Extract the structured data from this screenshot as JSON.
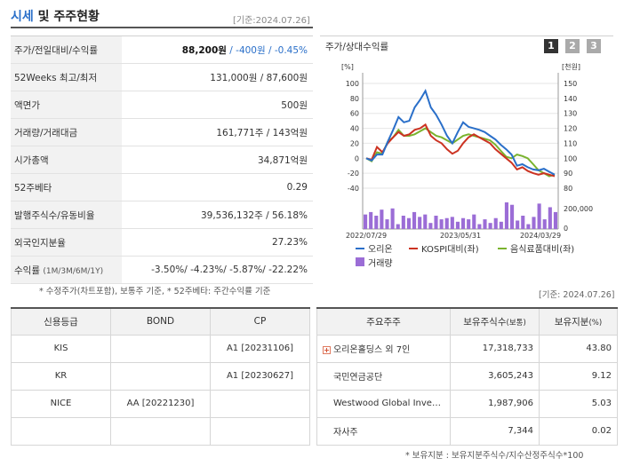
{
  "header": {
    "title_hl": "시세",
    "title_rest": " 및 주주현황",
    "date": "[기준:2024.07.26]"
  },
  "quote": {
    "rows": [
      {
        "label": "주가/전일대비/수익률"
      },
      {
        "label": "52Weeks 최고/최저",
        "value": "131,000원 / 87,600원"
      },
      {
        "label": "액면가",
        "value": "500원"
      },
      {
        "label": "거래량/거래대금",
        "value": "161,771주 / 143억원"
      },
      {
        "label": "시가총액",
        "value": "34,871억원"
      },
      {
        "label": "52주베타",
        "value": "0.29"
      },
      {
        "label": "발행주식수/유동비율",
        "value": "39,536,132주 / 56.18%"
      },
      {
        "label": "외국인지분율",
        "value": "27.23%"
      },
      {
        "label": "수익률",
        "sub": "(1M/3M/6M/1Y)",
        "value": "-3.50%/ -4.23%/ -5.87%/ -22.22%"
      }
    ],
    "price": "88,200원",
    "change": " / -400원",
    "change_pct": " / -0.45%"
  },
  "note1": "* 수정주가(차트포함), 보통주 기준, * 52주베타: 주간수익률 기준",
  "note1_date": "[기준: 2024.07.26]",
  "chart_panel": {
    "title": "주가/상대수익률",
    "period_buttons": [
      "1",
      "2",
      "3"
    ]
  },
  "chart_data": {
    "type": "line",
    "title": "주가/상대수익률",
    "left_axis_label": "[%]",
    "right_axis_label": "[천원]",
    "left_ylim": [
      -40,
      100
    ],
    "left_ticks": [
      "100",
      "80",
      "60",
      "40",
      "20",
      "0",
      "-20",
      "-40"
    ],
    "right_ylim": [
      80,
      150
    ],
    "right_ticks": [
      "150",
      "140",
      "130",
      "120",
      "110",
      "100",
      "90",
      "80"
    ],
    "volume_tick": "200,000",
    "volume_zero": "0",
    "x_ticks": [
      "2022/07/29",
      "2023/05/31",
      "2024/03/29"
    ],
    "series": [
      {
        "name": "오리온",
        "color": "#2a6fc9",
        "values": [
          0,
          -3,
          5,
          5,
          22,
          38,
          55,
          48,
          50,
          68,
          78,
          90,
          68,
          58,
          45,
          30,
          20,
          35,
          48,
          42,
          40,
          38,
          35,
          30,
          25,
          18,
          12,
          5,
          -10,
          -8,
          -12,
          -15,
          -16,
          -14,
          -18,
          -22
        ]
      },
      {
        "name": "KOSPI대비(좌)",
        "color": "#cc3322",
        "values": [
          0,
          -2,
          15,
          8,
          20,
          28,
          35,
          30,
          32,
          38,
          40,
          45,
          30,
          24,
          20,
          12,
          6,
          10,
          20,
          28,
          32,
          28,
          24,
          20,
          12,
          6,
          0,
          -6,
          -15,
          -12,
          -17,
          -20,
          -22,
          -20,
          -22,
          -24
        ]
      },
      {
        "name": "음식료품대비(좌)",
        "color": "#7ab32e",
        "values": [
          0,
          -4,
          8,
          6,
          22,
          28,
          38,
          30,
          30,
          32,
          36,
          40,
          35,
          30,
          28,
          24,
          20,
          25,
          30,
          32,
          30,
          28,
          26,
          24,
          18,
          10,
          2,
          0,
          5,
          3,
          0,
          -8,
          -16,
          -20,
          -24,
          -22
        ]
      }
    ],
    "volume_label": "거래량",
    "volume_color": "#9b6dd6",
    "volume": [
      60,
      70,
      55,
      80,
      40,
      85,
      20,
      55,
      45,
      70,
      50,
      60,
      25,
      55,
      40,
      45,
      50,
      30,
      45,
      40,
      60,
      20,
      40,
      25,
      45,
      30,
      110,
      100,
      35,
      55,
      20,
      50,
      105,
      40,
      90,
      70
    ]
  },
  "credit": {
    "headers": [
      "신용등급",
      "BOND",
      "CP"
    ],
    "rows": [
      [
        "KIS",
        "",
        "A1 [20231106]"
      ],
      [
        "KR",
        "",
        "A1 [20230627]"
      ],
      [
        "NICE",
        "AA [20221230]",
        ""
      ],
      [
        "",
        "",
        ""
      ]
    ]
  },
  "holders": {
    "headers": [
      "주요주주",
      "보유주식수",
      "(보통)",
      "보유지분",
      "(%)"
    ],
    "rows": [
      {
        "name": "오리온홀딩스 외 7인",
        "shares": "17,318,733",
        "pct": "43.80",
        "expand": "+"
      },
      {
        "name": "국민연금공단",
        "shares": "3,605,243",
        "pct": "9.12"
      },
      {
        "name": "Westwood Global Inve…",
        "shares": "1,987,906",
        "pct": "5.03"
      },
      {
        "name": "자사주",
        "shares": "7,344",
        "pct": "0.02"
      }
    ]
  },
  "note2": "* 보유지분 : 보유지분주식수/지수산정주식수*100"
}
